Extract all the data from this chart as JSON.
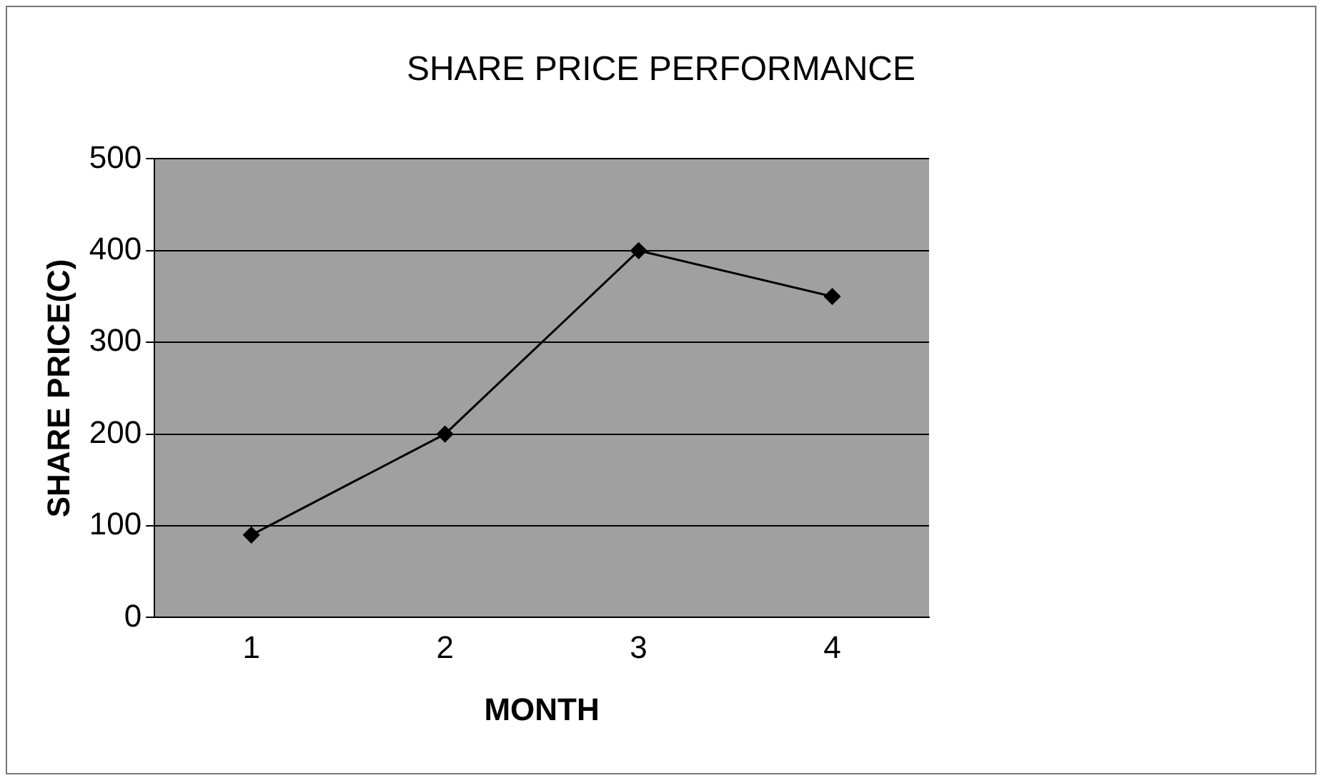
{
  "chart_data": {
    "type": "line",
    "title": "SHARE PRICE PERFORMANCE",
    "xlabel": "MONTH",
    "ylabel": "SHARE PRICE(C)",
    "categories": [
      "1",
      "2",
      "3",
      "4"
    ],
    "series": [
      {
        "color": "#000000",
        "values": [
          90,
          200,
          400,
          350
        ]
      }
    ],
    "ylim": [
      0,
      500
    ],
    "yticks": [
      0,
      100,
      200,
      300,
      400,
      500
    ],
    "grid": "y",
    "marker": "diamond",
    "line_style": "solid"
  }
}
